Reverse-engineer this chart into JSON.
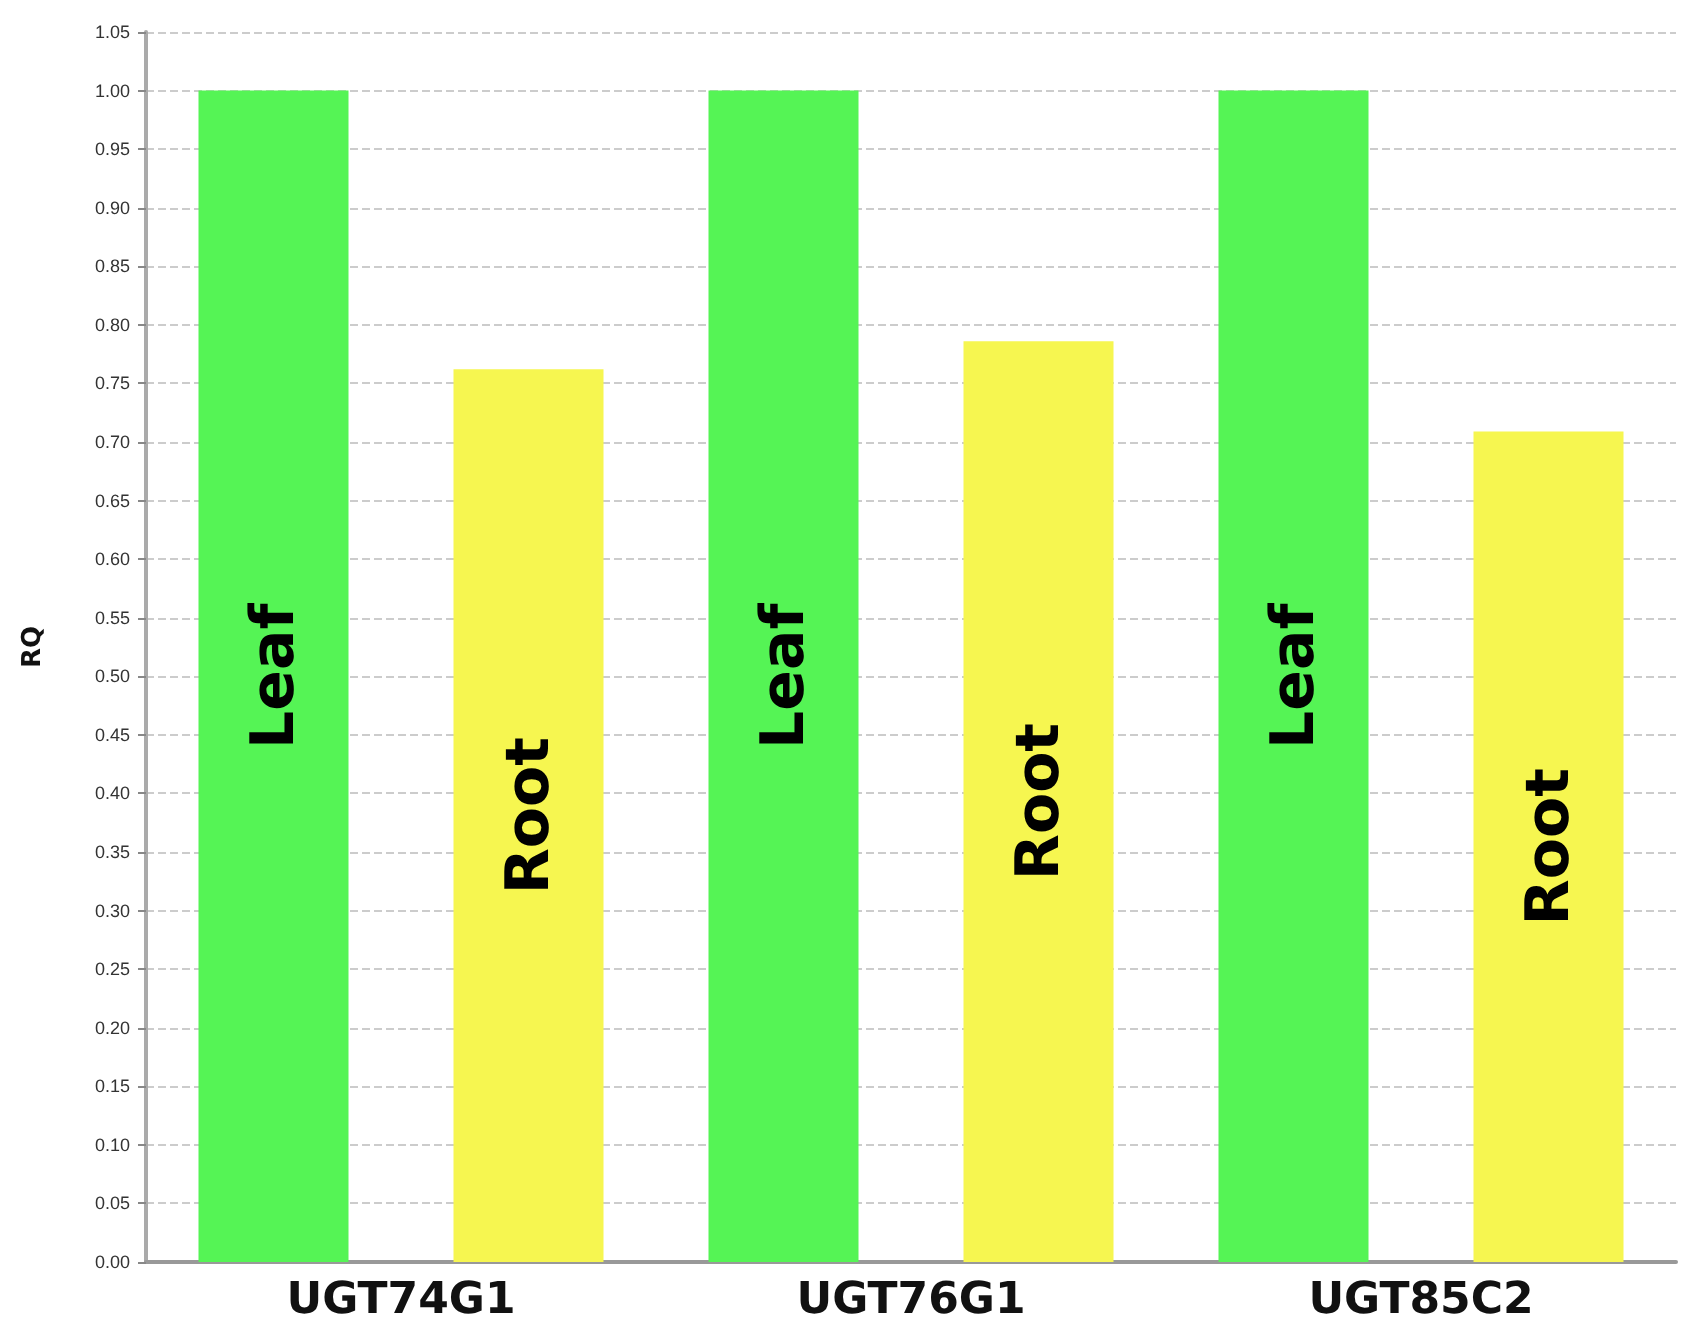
{
  "chart_data": {
    "type": "bar",
    "ylabel": "RQ",
    "categories": [
      "UGT74G1",
      "UGT76G1",
      "UGT85C2"
    ],
    "series": [
      {
        "name": "Leaf",
        "color": "#55f455",
        "values": [
          1.0,
          1.0,
          1.0
        ]
      },
      {
        "name": "Root",
        "color": "#f6f650",
        "values": [
          0.762,
          0.786,
          0.709
        ]
      }
    ],
    "ylim": [
      0,
      1.05
    ],
    "yticks": [
      {
        "value": 0,
        "label": "0.00"
      },
      {
        "value": 0.05,
        "label": "0.05"
      },
      {
        "value": 0.1,
        "label": "0.10"
      },
      {
        "value": 0.15,
        "label": "0.15"
      },
      {
        "value": 0.2,
        "label": "0.20"
      },
      {
        "value": 0.25,
        "label": "0.25"
      },
      {
        "value": 0.3,
        "label": "0.30"
      },
      {
        "value": 0.35,
        "label": "0.35"
      },
      {
        "value": 0.4,
        "label": "0.40"
      },
      {
        "value": 0.45,
        "label": "0.45"
      },
      {
        "value": 0.5,
        "label": "0.50"
      },
      {
        "value": 0.55,
        "label": "0.55"
      },
      {
        "value": 0.6,
        "label": "0.60"
      },
      {
        "value": 0.65,
        "label": "0.65"
      },
      {
        "value": 0.7,
        "label": "0.70"
      },
      {
        "value": 0.75,
        "label": "0.75"
      },
      {
        "value": 0.8,
        "label": "0.80"
      },
      {
        "value": 0.85,
        "label": "0.85"
      },
      {
        "value": 0.9,
        "label": "0.90"
      },
      {
        "value": 0.95,
        "label": "0.95"
      },
      {
        "value": 1,
        "label": "1.00"
      },
      {
        "value": 1.05,
        "label": "1.05"
      }
    ],
    "grid": "y",
    "legend": false
  }
}
